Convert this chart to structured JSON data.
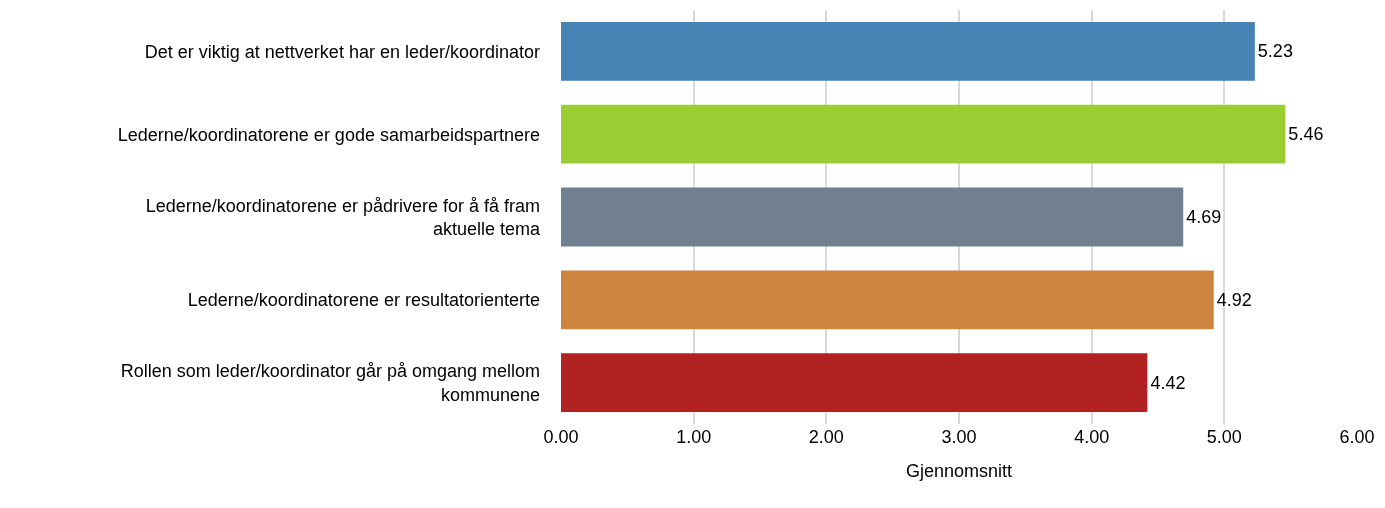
{
  "chart_data": {
    "type": "bar",
    "orientation": "horizontal",
    "categories": [
      "Det er viktig at nettverket har en leder/koordinator",
      "Lederne/koordinatorene er gode samarbeidspartnere",
      "Lederne/koordinatorene er pådrivere for å få fram aktuelle tema",
      "Lederne/koordinatorene er resultatorienterte",
      "Rollen som leder/koordinator går på omgang mellom kommunene"
    ],
    "values": [
      5.23,
      5.46,
      4.69,
      4.92,
      4.42
    ],
    "colors": [
      "#4682b4",
      "#9acd32",
      "#708090",
      "#cd853f",
      "#b22222"
    ],
    "xlabel": "Gjennomsnitt",
    "xlim": [
      0,
      6
    ],
    "xticks": [
      {
        "value": 0,
        "label": "0.00"
      },
      {
        "value": 1,
        "label": "1.00"
      },
      {
        "value": 2,
        "label": "2.00"
      },
      {
        "value": 3,
        "label": "3.00"
      },
      {
        "value": 4,
        "label": "4.00"
      },
      {
        "value": 5,
        "label": "5.00"
      },
      {
        "value": 6,
        "label": "6.00"
      }
    ],
    "grid": "x",
    "data_labels": true
  }
}
